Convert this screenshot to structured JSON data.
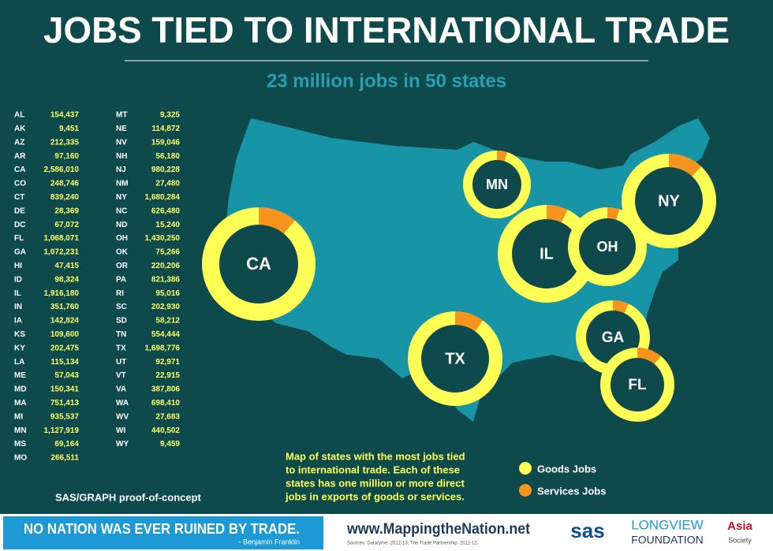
{
  "header": {
    "title": "JOBS TIED TO INTERNATIONAL TRADE",
    "subtitle": "23 million jobs in 50 states"
  },
  "states": [
    [
      "AL",
      "154,437"
    ],
    [
      "AK",
      "9,451"
    ],
    [
      "AZ",
      "212,335"
    ],
    [
      "AR",
      "97,160"
    ],
    [
      "CA",
      "2,586,010"
    ],
    [
      "CO",
      "248,746"
    ],
    [
      "CT",
      "839,240"
    ],
    [
      "DE",
      "28,369"
    ],
    [
      "DC",
      "67,072"
    ],
    [
      "FL",
      "1,068,071"
    ],
    [
      "GA",
      "1,072,231"
    ],
    [
      "HI",
      "47,415"
    ],
    [
      "ID",
      "98,324"
    ],
    [
      "IL",
      "1,916,180"
    ],
    [
      "IN",
      "351,760"
    ],
    [
      "IA",
      "142,824"
    ],
    [
      "KS",
      "109,600"
    ],
    [
      "KY",
      "202,475"
    ],
    [
      "LA",
      "115,134"
    ],
    [
      "ME",
      "57,043"
    ],
    [
      "MD",
      "150,341"
    ],
    [
      "MA",
      "751,413"
    ],
    [
      "MI",
      "935,537"
    ],
    [
      "MN",
      "1,127,919"
    ],
    [
      "MS",
      "69,164"
    ],
    [
      "MO",
      "266,511"
    ],
    [
      "MT",
      "9,325"
    ],
    [
      "NE",
      "114,872"
    ],
    [
      "NV",
      "159,046"
    ],
    [
      "NH",
      "56,180"
    ],
    [
      "NJ",
      "980,228"
    ],
    [
      "NM",
      "27,480"
    ],
    [
      "NY",
      "1,680,284"
    ],
    [
      "NC",
      "626,480"
    ],
    [
      "ND",
      "15,240"
    ],
    [
      "OH",
      "1,430,250"
    ],
    [
      "OK",
      "75,266"
    ],
    [
      "OR",
      "220,206"
    ],
    [
      "PA",
      "821,386"
    ],
    [
      "RI",
      "95,016"
    ],
    [
      "SC",
      "202,930"
    ],
    [
      "SD",
      "58,212"
    ],
    [
      "TN",
      "554,444"
    ],
    [
      "TX",
      "1,698,776"
    ],
    [
      "UT",
      "92,971"
    ],
    [
      "VT",
      "22,915"
    ],
    [
      "VA",
      "387,806"
    ],
    [
      "WA",
      "698,410"
    ],
    [
      "WV",
      "27,683"
    ],
    [
      "WI",
      "440,502"
    ],
    [
      "WY",
      "9,459"
    ]
  ],
  "donuts": [
    {
      "label": "CA",
      "services_share": 11
    },
    {
      "label": "MN",
      "services_share": 5
    },
    {
      "label": "IL",
      "services_share": 7
    },
    {
      "label": "OH",
      "services_share": 5
    },
    {
      "label": "NY",
      "services_share": 12
    },
    {
      "label": "TX",
      "services_share": 10
    },
    {
      "label": "GA",
      "services_share": 7
    },
    {
      "label": "FL",
      "services_share": 11
    }
  ],
  "colors": {
    "goods": "#ffff55",
    "services": "#f7941d"
  },
  "legend": {
    "goods": "Goods Jobs",
    "services": "Services Jobs"
  },
  "note": [
    "Map of states with the most jobs tied",
    "to international trade. Each of these",
    "states has one million or more direct",
    "jobs in exports of goods or services."
  ],
  "credit": "SAS/GRAPH proof-of-concept",
  "footer": {
    "quote": "NO NATION WAS EVER RUINED BY TRADE.",
    "author": "- Benjamin Franklin",
    "url": "www.MappingtheNation.net",
    "sources": "Sources: Dataryme, 2012-13; The Trade Partnership, 2011-12.",
    "logo1": "sas",
    "logo2a": "LONGVIEW",
    "logo2b": "FOUNDATION",
    "logo3": "Asia",
    "logo3b": "Society"
  }
}
